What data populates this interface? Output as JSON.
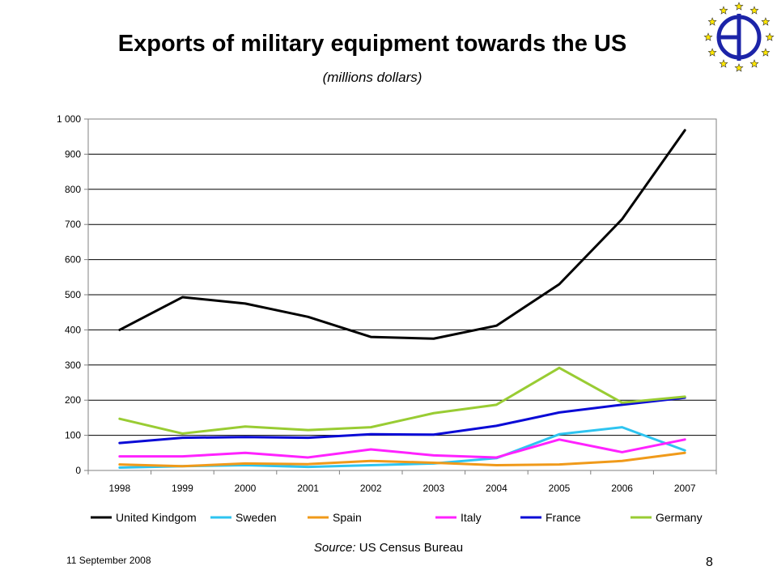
{
  "slide": {
    "title": "Exports of military equipment towards the US",
    "subtitle": "(millions dollars)",
    "source_label": "Source:",
    "source_value": "US Census Bureau",
    "date": "11 September 2008",
    "page_number": "8"
  },
  "chart_data": {
    "type": "line",
    "title": "",
    "xlabel": "",
    "ylabel": "",
    "categories": [
      "1998",
      "1999",
      "2000",
      "2001",
      "2002",
      "2003",
      "2004",
      "2005",
      "2006",
      "2007"
    ],
    "ylim": [
      0,
      1000
    ],
    "yticks": [
      0,
      100,
      200,
      300,
      400,
      500,
      600,
      700,
      800,
      900,
      1000
    ],
    "ytick_labels": [
      "0",
      "100",
      "200",
      "300",
      "400",
      "500",
      "600",
      "700",
      "800",
      "900",
      "1 000"
    ],
    "grid": "horizontal",
    "legend_position": "bottom",
    "series": [
      {
        "name": "United Kindgom",
        "color": "#000000",
        "values": [
          400,
          493,
          475,
          437,
          380,
          375,
          412,
          530,
          715,
          968
        ]
      },
      {
        "name": "Sweden",
        "color": "#2ec4f0",
        "values": [
          8,
          12,
          15,
          10,
          15,
          20,
          35,
          103,
          123,
          57
        ]
      },
      {
        "name": "Spain",
        "color": "#f09a1a",
        "values": [
          17,
          12,
          20,
          18,
          27,
          22,
          15,
          17,
          27,
          50
        ]
      },
      {
        "name": "Italy",
        "color": "#ff22ff",
        "values": [
          40,
          40,
          50,
          37,
          60,
          43,
          37,
          88,
          52,
          88
        ]
      },
      {
        "name": "France",
        "color": "#0a0ad6",
        "values": [
          78,
          93,
          95,
          93,
          103,
          102,
          127,
          165,
          187,
          207
        ]
      },
      {
        "name": "Germany",
        "color": "#99cc33",
        "values": [
          147,
          105,
          125,
          115,
          123,
          163,
          187,
          292,
          193,
          210
        ]
      }
    ]
  }
}
